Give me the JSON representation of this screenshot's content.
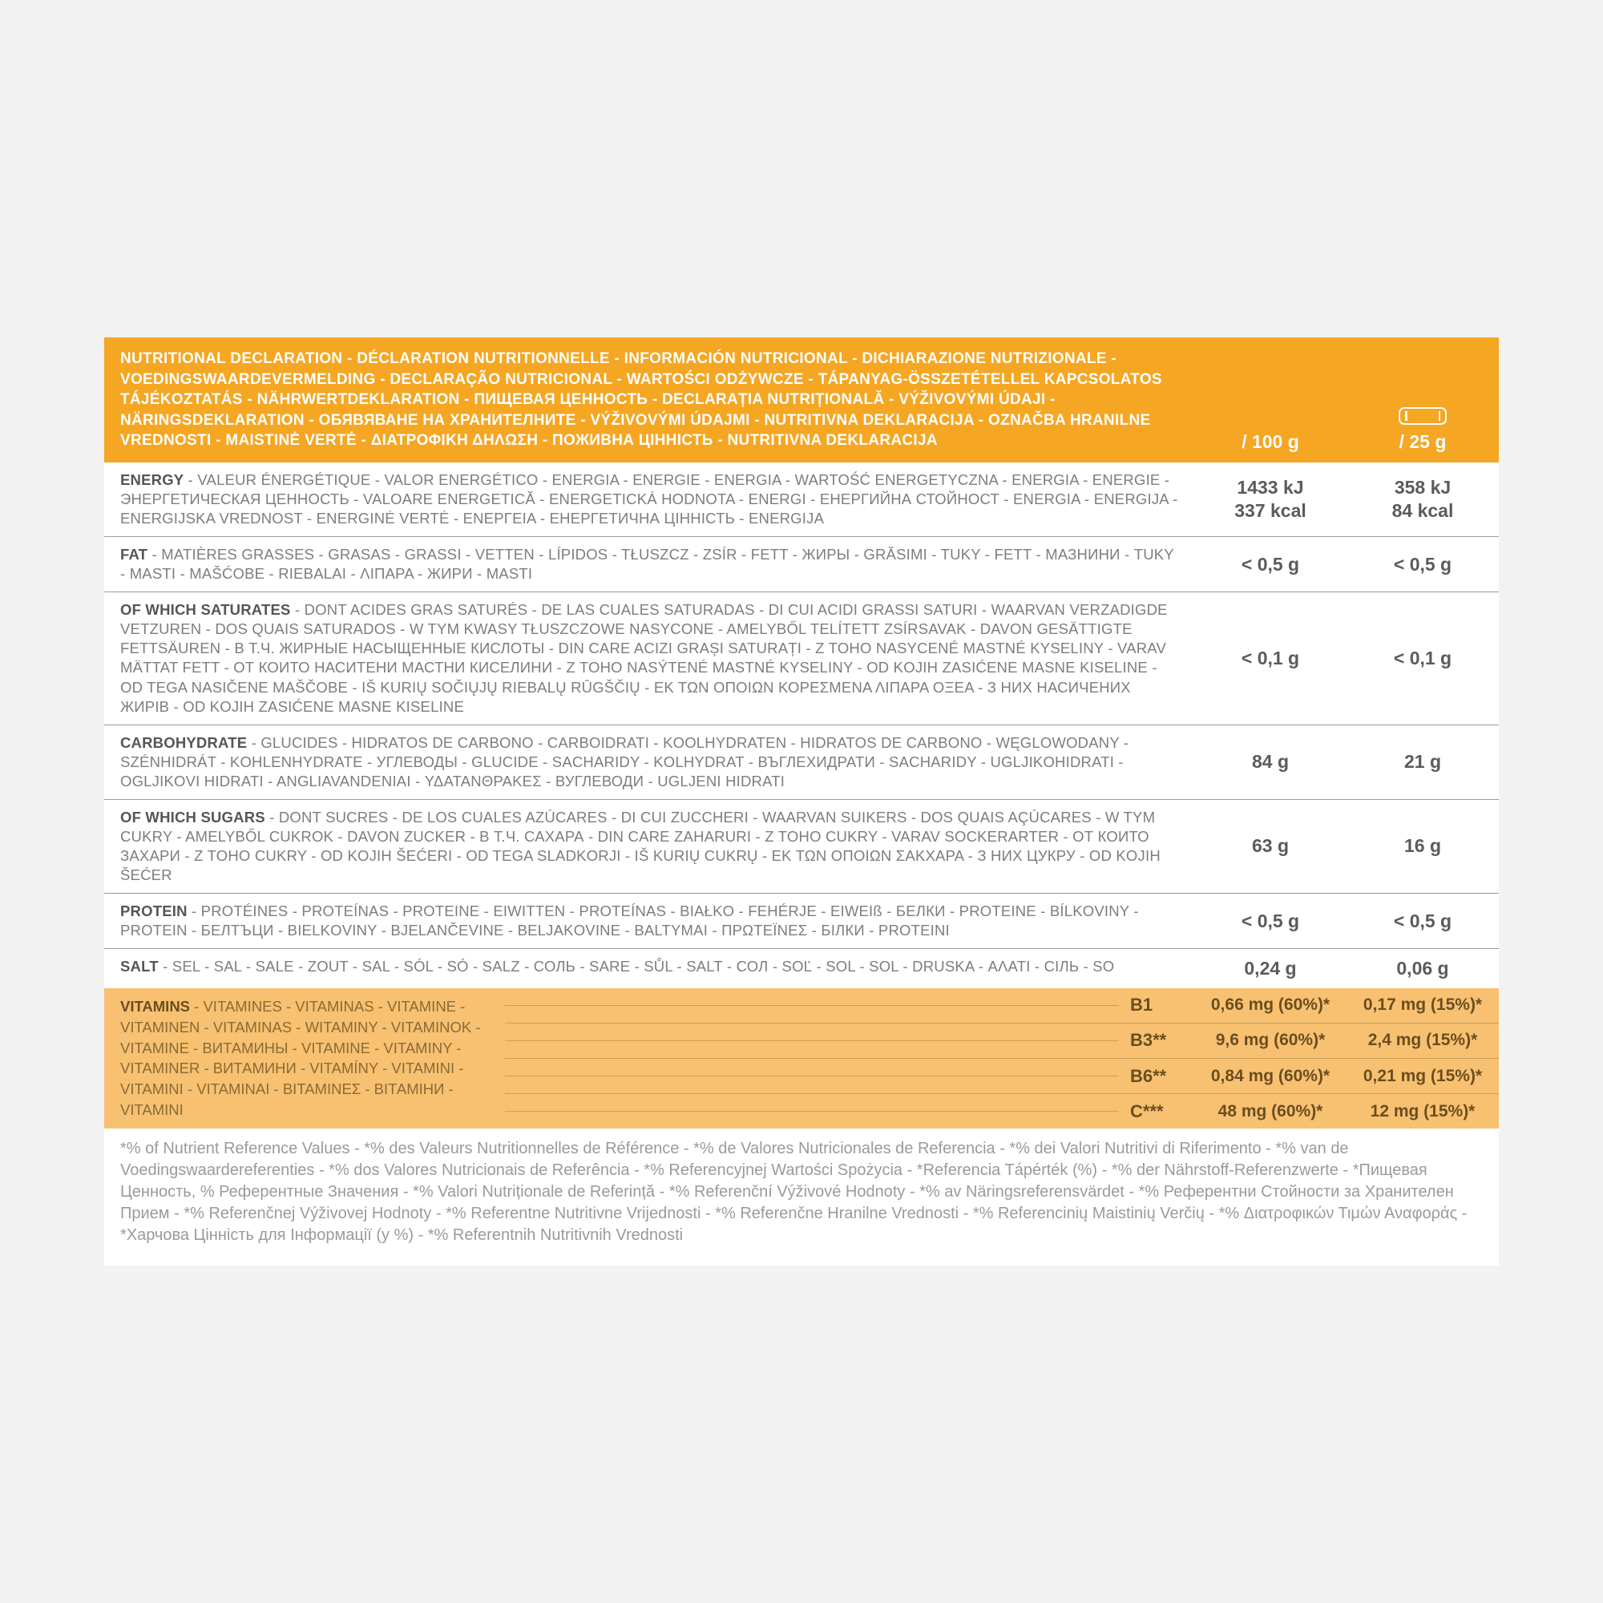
{
  "colors": {
    "page_bg": "#f2f2f2",
    "sheet_bg": "#ffffff",
    "header_bg": "#f5a623",
    "header_text": "#ffffff",
    "row_border": "#9a9a9a",
    "label_text": "#7d7d7d",
    "lead_text": "#555555",
    "value_text": "#5b5b5b",
    "vitamin_bg": "#f7c171",
    "vitamin_border": "#caa05a",
    "vitamin_text": "#6b4e1f",
    "footnote_text": "#9a9a9a"
  },
  "header": {
    "title": "NUTRITIONAL DECLARATION - DÉCLARATION NUTRITIONNELLE - INFORMACIÓN NUTRICIONAL - DICHIARAZIONE NUTRIZIONALE - VOEDINGSWAARDEVERMELDING - DECLARAÇÃO NUTRICIONAL - WARTOŚCI ODŻYWCZE - TÁPANYAG-ÖSSZETÉTELLEL KAPCSOLATOS TÁJÉKOZTATÁS - NÄHRWERTDEKLARATION - ПИЩЕВАЯ ЦЕННОСТЬ - DECLARAȚIA NUTRIȚIONALĂ - VÝŽIVOVÝMI ÚDAJI - NÄRINGSDEKLARATION - ОБЯВЯВАНЕ НА ХРАНИТЕЛНИТЕ - VÝŽIVOVÝMI ÚDAJMI - NUTRITIVNA DEKLARACIJA - OZNAČBA HRANILNE VREDNOSTI - MAISTINĖ VERTĖ - ΔΙΑΤΡΟΦΙΚΗ ΔΗΛΩΣΗ - ПОЖИВНА ЦІННІСТЬ - NUTRITIVNA DEKLARACIJA",
    "col1": "/ 100 g",
    "col2": "/ 25 g"
  },
  "rows": [
    {
      "lead": "ENERGY",
      "rest": " - VALEUR ÉNERGÉTIQUE - VALOR ENERGÉTICO - ENERGIA - ENERGIE - ENERGIA - WARTOŚĆ ENERGETYCZNA - ENERGIA - ENERGIE - ЭНЕРГЕТИЧЕСКАЯ ЦЕННОСТЬ - VALOARE ENERGETICĂ - ENERGETICKÁ HODNOTA - ENERGI - ЕНЕРГИЙНА СТОЙНОСТ - ENERGIA - ENERGIJA - ENERGIJSKA VREDNOST - ENERGINĖ VERTĖ - ΕΝΕΡΓΕΙΑ - ЕНЕРГЕТИЧНА ЦІННІСТЬ - ENERGIJA",
      "v1a": "1433 kJ",
      "v1b": "337 kcal",
      "v2a": "358 kJ",
      "v2b": "84 kcal"
    },
    {
      "lead": "FAT",
      "rest": " - MATIÈRES GRASSES - GRASAS - GRASSI - VETTEN - LÍPIDOS - TŁUSZCZ - ZSÍR - FETT - ЖИРЫ - GRĂSIMI - TUKY - FETT - МАЗНИНИ - TUKY - MASTI - MAŠĆOBE - RIEBALAI - ΛΙΠΑΡΑ - ЖИРИ - MASTI",
      "v1a": "< 0,5 g",
      "v2a": "< 0,5 g"
    },
    {
      "lead": "OF WHICH SATURATES",
      "rest": " - DONT ACIDES GRAS SATURÉS - DE LAS CUALES SATURADAS - DI CUI ACIDI GRASSI SATURI - WAARVAN VERZADIGDE VETZUREN - DOS QUAIS SATURADOS - W TYM KWASY TŁUSZCZOWE NASYCONE - AMELYBŐL TELÍTETT ZSÍRSAVAK - DAVON GESÄTTIGTE FETTSÄUREN - В Т.Ч. ЖИРНЫЕ НАСЫЩЕННЫЕ КИСЛОТЫ - DIN CARE ACIZI GRAȘI SATURAȚI - Z TOHO NASYCENÉ MASTNÉ KYSELINY - VARAV MÄTTAT FETT - ОТ КОИТО НАСИТЕНИ МАСТНИ КИСЕЛИНИ - Z TOHO NASÝTENÉ MASTNÉ KYSELINY - OD KOJIH ZASIĆENE MASNE KISELINE - OD TEGA NASIČENE MAŠČOBE - IŠ KURIŲ SOČIŲJŲ RIEBALŲ RŪGŠČIŲ - ΕΚ ΤΩΝ ΟΠΟΙΩΝ ΚΟΡΕΣΜΕΝΑ ΛΙΠΑΡΑ ΟΞΕΑ - З НИХ НАСИЧЕНИХ ЖИРІВ - OD KOJIH ZASIĆENE MASNE KISELINE",
      "v1a": "< 0,1 g",
      "v2a": "< 0,1 g"
    },
    {
      "lead": "CARBOHYDRATE",
      "rest": " - GLUCIDES - HIDRATOS DE CARBONO - CARBOIDRATI - KOOLHYDRATEN - HIDRATOS DE CARBONO - WĘGLOWODANY - SZÉNHIDRÁT - KOHLENHYDRATE - УГЛЕВОДЫ - GLUCIDE - SACHARIDY - KOLHYDRAT - ВЪГЛЕХИДРАТИ - SACHARIDY - UGLJIKOHIDRATI - OGLJIKOVI HIDRATI - ANGLIAVANDENIAI - ΥΔΑΤΑΝΘΡΑΚΕΣ - ВУГЛЕВОДИ - UGLJENI HIDRATI",
      "v1a": "84 g",
      "v2a": "21 g"
    },
    {
      "lead": "OF WHICH SUGARS",
      "rest": " - DONT SUCRES - DE LOS CUALES AZÚCARES - DI CUI ZUCCHERI - WAARVAN SUIKERS - DOS QUAIS AÇÚCARES - W TYM CUKRY - AMELYBŐL CUKROK - DAVON ZUCKER - В Т.Ч. САХАРА - DIN CARE ZAHARURI - Z TOHO CUKRY - VARAV SOCKERARTER - ОТ КОИТО ЗАХАРИ - Z TOHO CUKRY - OD KOJIH ŠEĆERI - OD TEGA SLADKORJI - IŠ KURIŲ CUKRŲ - ΕΚ ΤΩΝ ΟΠΟΙΩΝ ΣΑΚΧΑΡΑ - З НИХ ЦУКРУ - OD KOJIH ŠEĆER",
      "v1a": "63 g",
      "v2a": "16 g"
    },
    {
      "lead": "PROTEIN",
      "rest": " - PROTÉINES - PROTEÍNAS - PROTEINE - EIWITTEN - PROTEÍNAS - BIAŁKO - FEHÉRJE - EIWEIß - БЕЛКИ - PROTEINE - BÍLKOVINY - PROTEIN - БЕЛТЪЦИ - BIELKOVINY - BJELANČEVINE - BELJAKOVINE - BALTYMAI - ΠΡΩΤΕΪΝΕΣ - БІЛКИ - PROTEINI",
      "v1a": "< 0,5 g",
      "v2a": "< 0,5 g"
    },
    {
      "lead": "SALT",
      "rest": " - SEL - SAL - SALE - ZOUT - SAL - SÓL - SÓ - SALZ - СОЛЬ - SARE - SŮL - SALT - СОЛ - SOĽ - SOL - SOL - DRUSKA - ΑΛΑΤΙ - СІЛЬ - SO",
      "v1a": "0,24 g",
      "v2a": "0,06 g",
      "noborder": true
    }
  ],
  "vitamins": {
    "lead": "VITAMINS",
    "rest": " - VITAMINES - VITAMINAS - VITAMINE - VITAMINEN - VITAMINAS - WITAMINY - VITAMINOK - VITAMINE - ВИТАМИНЫ - VITAMINE - VITAMINY - VITAMINER - ВИТАМИНИ - VITAMÍNY - VITAMINI - VITAMINI - VITAMINAI - ΒΙΤΑΜΙΝΕΣ - ВІТАМІНИ - VITAMINI",
    "items": [
      {
        "name": "B1",
        "v1": "0,66 mg (60%)*",
        "v2": "0,17 mg (15%)*"
      },
      {
        "name": "B3**",
        "v1": "9,6 mg (60%)*",
        "v2": "2,4 mg (15%)*"
      },
      {
        "name": "B6**",
        "v1": "0,84 mg (60%)*",
        "v2": "0,21 mg (15%)*"
      },
      {
        "name": "C***",
        "v1": "48 mg (60%)*",
        "v2": "12 mg (15%)*"
      }
    ]
  },
  "footnote": "*% of Nutrient Reference Values - *% des Valeurs Nutritionnelles de Référence - *% de Valores Nutricionales de Referencia - *% dei Valori Nutritivi di Riferimento - *% van de Voedingswaardereferenties - *% dos Valores Nutricionais de Referência - *% Referencyjnej Wartości Spożycia - *Referencia Tápérték (%) - *% der Nährstoff-Referenzwerte - *Пищевая Ценность, % Референтные Значения - *% Valori Nutriționale de Referință - *% Referenční Výživové Hodnoty - *% av Näringsreferensvärdet - *% Референтни Стойности за Хранителен Прием - *% Referenčnej Výživovej Hodnoty - *% Referentne Nutritivne Vrijednosti - *% Referenčne Hranilne Vrednosti - *% Referencinių Maistinių Verčių - *% Διατροφικών Τιμών Αναφοράς - *Харчова Цінність для Інформації (у %) - *% Referentnih Nutritivnih Vrednosti"
}
